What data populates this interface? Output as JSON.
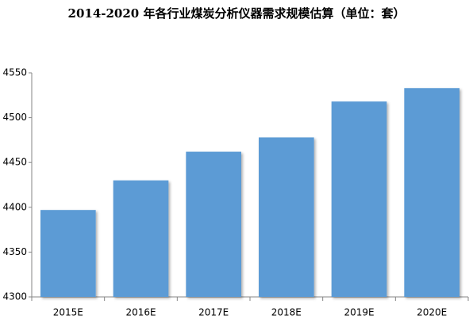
{
  "chart_data": {
    "type": "bar",
    "title": "2014-2020 年各行业煤炭分析仪器需求规模估算（单位：套）",
    "categories": [
      "2015E",
      "2016E",
      "2017E",
      "2018E",
      "2019E",
      "2020E"
    ],
    "values": [
      4397,
      4430,
      4462,
      4478,
      4518,
      4533
    ],
    "color": "#5b9bd5",
    "ylim": [
      4300,
      4550
    ],
    "yticks": [
      4300,
      4350,
      4400,
      4450,
      4500,
      4550
    ],
    "grid": false
  }
}
